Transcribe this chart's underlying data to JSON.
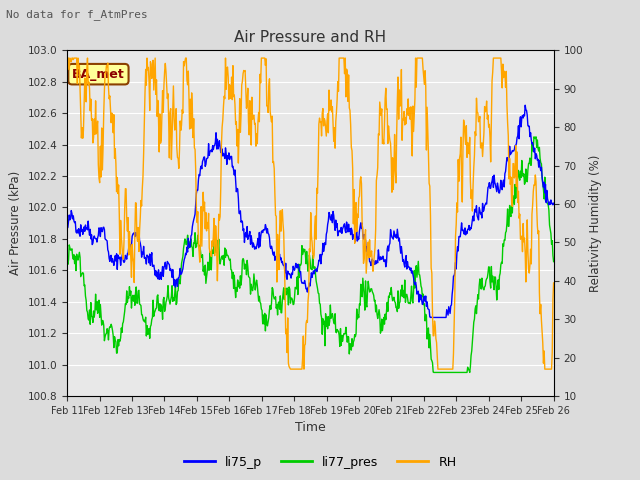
{
  "title": "Air Pressure and RH",
  "top_left_text": "No data for f_AtmPres",
  "annotation_box": "BA_met",
  "xlabel": "Time",
  "ylabel_left": "Air Pressure (kPa)",
  "ylabel_right": "Relativity Humidity (%)",
  "ylim_left": [
    100.8,
    103.0
  ],
  "ylim_right": [
    10,
    100
  ],
  "yticks_left": [
    100.8,
    101.0,
    101.2,
    101.4,
    101.6,
    101.8,
    102.0,
    102.2,
    102.4,
    102.6,
    102.8,
    103.0
  ],
  "yticks_right": [
    10,
    20,
    30,
    40,
    50,
    60,
    70,
    80,
    90,
    100
  ],
  "xtick_labels": [
    "Feb 11",
    "Feb 12",
    "Feb 13",
    "Feb 14",
    "Feb 15",
    "Feb 16",
    "Feb 17",
    "Feb 18",
    "Feb 19",
    "Feb 20",
    "Feb 21",
    "Feb 22",
    "Feb 23",
    "Feb 24",
    "Feb 25",
    "Feb 26"
  ],
  "color_blue": "#0000FF",
  "color_green": "#00CC00",
  "color_orange": "#FFA500",
  "fig_bg": "#DCDCDC",
  "plot_bg": "#E8E8E8",
  "legend_labels": [
    "li75_p",
    "li77_pres",
    "RH"
  ],
  "n_points": 720,
  "linewidth": 1.0
}
